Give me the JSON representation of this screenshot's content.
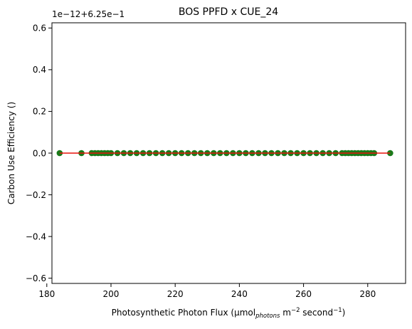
{
  "chart_data": {
    "type": "scatter",
    "title": "BOS PPFD x CUE_24",
    "xlabel": {
      "prefix": "Photosynthetic Photon Flux (µmol",
      "sub": "photons",
      "mid1": " m",
      "sup1": "−2",
      "mid2": " second",
      "sup2": "−1",
      "suffix": ")"
    },
    "ylabel": "Carbon Use Efficiency ()",
    "offset_label": "1e−12+6.25e−1",
    "xlim": [
      181.6,
      291.8
    ],
    "ylim": [
      -0.625,
      0.625
    ],
    "xticks": [
      180,
      200,
      220,
      240,
      260,
      280
    ],
    "yticks": [
      -0.6,
      -0.4,
      -0.2,
      0.0,
      0.2,
      0.4,
      0.6
    ],
    "ytick_labels": [
      "−0.6",
      "−0.4",
      "−0.2",
      "0.0",
      "0.2",
      "0.4",
      "0.6"
    ],
    "series": [
      {
        "kind": "points",
        "color": "#1a7a1a",
        "x": [
          184,
          190.8,
          194,
          195,
          196,
          197,
          198,
          199,
          200,
          202,
          204,
          206,
          208,
          210,
          212,
          214,
          216,
          218,
          220,
          222,
          224,
          226,
          228,
          230,
          232,
          234,
          236,
          238,
          240,
          242,
          244,
          246,
          248,
          250,
          252,
          254,
          256,
          258,
          260,
          262,
          264,
          266,
          268,
          270,
          272,
          273,
          274,
          275,
          276,
          277,
          278,
          279,
          280,
          281,
          282,
          287
        ],
        "y": [
          0,
          0,
          0,
          0,
          0,
          0,
          0,
          0,
          0,
          0,
          0,
          0,
          0,
          0,
          0,
          0,
          0,
          0,
          0,
          0,
          0,
          0,
          0,
          0,
          0,
          0,
          0,
          0,
          0,
          0,
          0,
          0,
          0,
          0,
          0,
          0,
          0,
          0,
          0,
          0,
          0,
          0,
          0,
          0,
          0,
          0,
          0,
          0,
          0,
          0,
          0,
          0,
          0,
          0,
          0,
          0
        ]
      },
      {
        "kind": "line",
        "color": "#e8120c",
        "x": [
          184,
          287
        ],
        "y": [
          0,
          0
        ]
      }
    ]
  }
}
